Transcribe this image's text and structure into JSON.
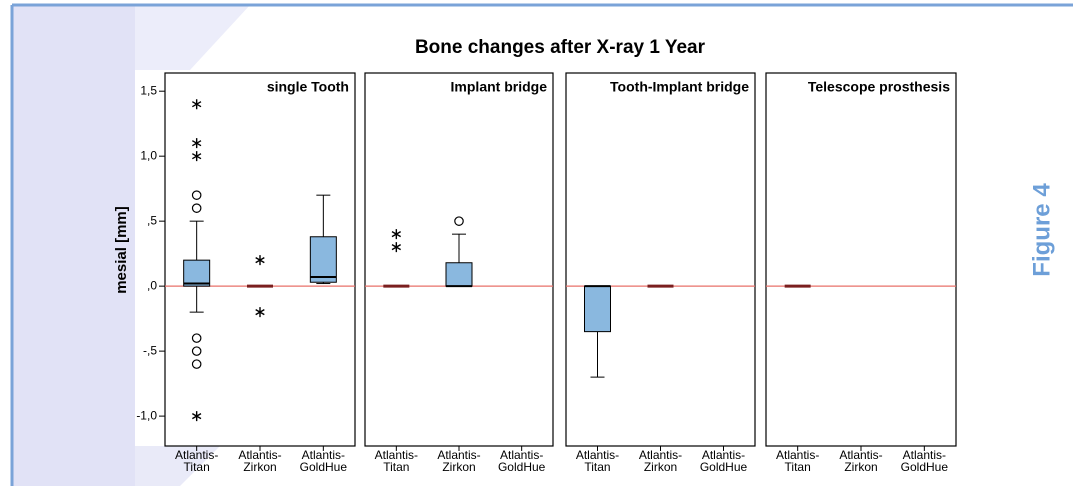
{
  "figure_label": "Figure 4",
  "chart_data": {
    "type": "box",
    "title": "Bone changes after X-ray 1 Year",
    "ylabel": "mesial [mm]",
    "ylim": [
      -1.23,
      1.64
    ],
    "yticks": [
      {
        "value": 1.5,
        "label": "1,5"
      },
      {
        "value": 1.0,
        "label": "1,0"
      },
      {
        "value": 0.5,
        "label": ",5"
      },
      {
        "value": 0,
        "label": ",0"
      },
      {
        "value": -0.5,
        "label": "-,5"
      },
      {
        "value": -1.0,
        "label": "-1,0"
      }
    ],
    "reference_line": 0,
    "reference_color": "#e8706a",
    "box_color": "#8ab8df",
    "categories": [
      [
        "Atlantis-",
        "Titan"
      ],
      [
        "Atlantis-",
        "Zirkon"
      ],
      [
        "Atlantis-",
        "GoldHue"
      ]
    ],
    "panels": [
      {
        "title": "single Tooth",
        "boxes": [
          {
            "min": -0.2,
            "q1": 0.0,
            "median": 0.02,
            "q3": 0.2,
            "max": 0.5,
            "circles": [
              0.7,
              0.6,
              -0.4,
              -0.5,
              -0.6
            ],
            "stars": [
              1.4,
              1.1,
              1.0,
              -1.0
            ]
          },
          {
            "min": 0,
            "q1": 0,
            "median": 0,
            "q3": 0,
            "max": 0,
            "circles": [],
            "stars": [
              0.2,
              -0.2
            ]
          },
          {
            "min": 0.02,
            "q1": 0.03,
            "median": 0.07,
            "q3": 0.38,
            "max": 0.7,
            "circles": [],
            "stars": []
          }
        ]
      },
      {
        "title": "Implant bridge",
        "boxes": [
          {
            "min": 0,
            "q1": 0,
            "median": 0,
            "q3": 0,
            "max": 0,
            "circles": [],
            "stars": [
              0.4,
              0.3
            ]
          },
          {
            "min": 0,
            "q1": 0,
            "median": 0,
            "q3": 0.18,
            "max": 0.4,
            "circles": [
              0.5
            ],
            "stars": []
          },
          null
        ]
      },
      {
        "title": "Tooth-Implant bridge",
        "boxes": [
          {
            "min": -0.7,
            "q1": -0.35,
            "median": 0,
            "q3": 0,
            "max": 0,
            "circles": [],
            "stars": []
          },
          {
            "min": 0,
            "q1": 0,
            "median": 0,
            "q3": 0,
            "max": 0,
            "circles": [],
            "stars": []
          },
          null
        ]
      },
      {
        "title": "Telescope prosthesis",
        "boxes": [
          {
            "min": 0,
            "q1": 0,
            "median": 0,
            "q3": 0,
            "max": 0,
            "circles": [],
            "stars": []
          },
          null,
          null
        ]
      }
    ]
  }
}
